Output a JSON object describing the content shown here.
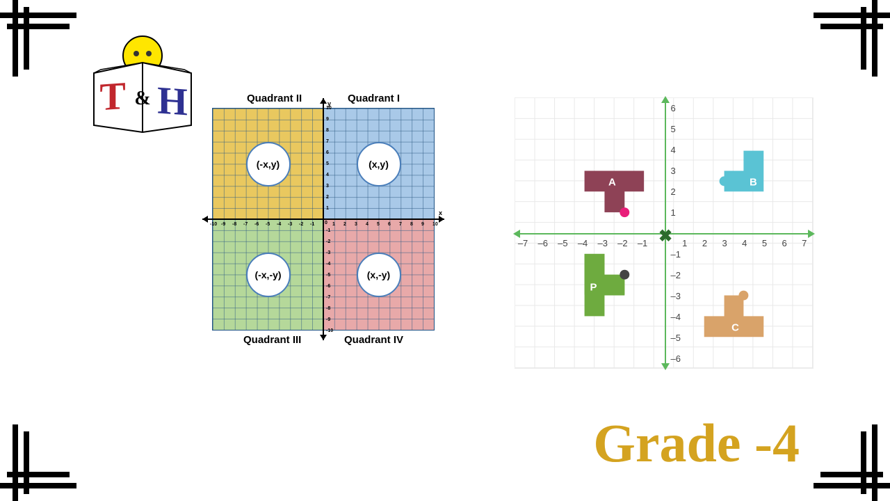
{
  "grade_text": "Grade -4",
  "logo": {
    "t_letter": "T",
    "amp": "&",
    "h_letter": "H",
    "t_color": "#c1272d",
    "amp_color": "#000",
    "h_color": "#2e3192",
    "face_color": "#ffe600"
  },
  "quadrants": {
    "labels": {
      "q1": "(x,y)",
      "q2": "(-x,y)",
      "q3": "(-x,-y)",
      "q4": "(x,-y)"
    },
    "titles": {
      "q1": "Quadrant I",
      "q2": "Quadrant II",
      "q3": "Quadrant III",
      "q4": "Quadrant IV"
    },
    "colors": {
      "q1": "#a9c9e8",
      "q2": "#e9c85f",
      "q3": "#b5d89a",
      "q4": "#e8a9a9"
    },
    "axis_range": {
      "min": -10,
      "max": 10
    },
    "y_label": "y",
    "x_label": "x"
  },
  "shapes_chart": {
    "x_ticks": [
      -7,
      -6,
      -5,
      -4,
      -3,
      -2,
      -1,
      1,
      2,
      3,
      4,
      5,
      6,
      7
    ],
    "y_ticks_pos": [
      1,
      2,
      3,
      4,
      5,
      6
    ],
    "y_ticks_neg": [
      -1,
      -2,
      -3,
      -4,
      -5,
      -6
    ],
    "axis_color": "#5cb85c",
    "grid_color": "#e8e8e8",
    "shapes": {
      "A": {
        "label": "A",
        "color": "#8e4256",
        "dot_color": "#e91e7a"
      },
      "B": {
        "label": "B",
        "color": "#5ac3d4"
      },
      "P": {
        "label": "P",
        "color": "#6eab3f",
        "dot_color": "#444"
      },
      "C": {
        "label": "C",
        "color": "#d9a36a"
      }
    }
  },
  "colors": {
    "corner": "#000",
    "grade": "#d4a320",
    "bg": "#ffffff"
  }
}
